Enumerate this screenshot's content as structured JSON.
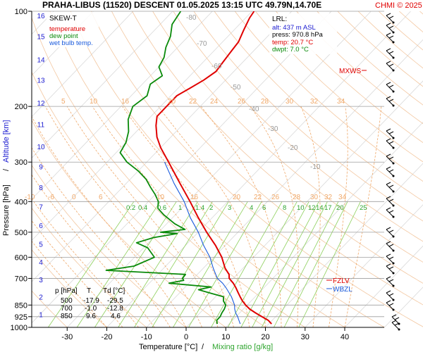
{
  "header": {
    "title": "PRAHA-LIBUS (11520)   DESCENT   01.05.2025 13:15 UTC  49.79N,14.70E",
    "copyright": "CHMI © 2025",
    "chart_kind": "SKEW-T"
  },
  "legend": {
    "temperature": "temperature",
    "dew_point": "dew point",
    "wet_bulb": "wet bulb temp."
  },
  "lrl": {
    "title": "LRL:",
    "alt": "alt: 437 m ASL",
    "press": "press: 970.8 hPa",
    "temp": "temp: 20.7 °C",
    "dwpt": "dwpt: 7.0 °C"
  },
  "labels": {
    "mxws": "MXWS",
    "fzlv": "FZLV",
    "wbzl": "WBZL"
  },
  "table": {
    "header": [
      "p [hPa]",
      "T",
      "Td [°C]"
    ],
    "rows": [
      [
        "500",
        "-17.9",
        "-29.5"
      ],
      [
        "700",
        "-1.0",
        "-12.8"
      ],
      [
        "850",
        "9.6",
        "4.6"
      ]
    ]
  },
  "colors": {
    "temperature": "#e00000",
    "dew_point": "#0a8a0a",
    "wet_bulb": "#1a5adc",
    "isotherm": "#d9d9d9",
    "dry_adiabat": "#f3c7a0",
    "moist_adiabat": "#f0a868",
    "mixing_ratio": "#8ccf5a",
    "isobar": "#9e9e9e"
  },
  "chart_data": {
    "type": "line",
    "title": "PRAHA-LIBUS (11520)   DESCENT   01.05.2025 13:15 UTC  49.79N,14.70E",
    "xlabel": "Temperature [°C]",
    "xlabel_extra": "Mixing ratio [g/kg]",
    "ylabel": "Pressure [hPa]",
    "ylabel_extra": "Altitude [km]",
    "xlim": [
      -35,
      45
    ],
    "ylim": [
      1000,
      100
    ],
    "y_scale": "log",
    "x_ticks": [
      -30,
      -20,
      -10,
      0,
      10,
      20,
      30,
      40
    ],
    "y_ticks": [
      100,
      200,
      300,
      400,
      500,
      600,
      700,
      850,
      925,
      1000
    ],
    "altitude_ticks": [
      {
        "km": 1,
        "p": 910
      },
      {
        "km": 2,
        "p": 800
      },
      {
        "km": 3,
        "p": 705
      },
      {
        "km": 4,
        "p": 620
      },
      {
        "km": 5,
        "p": 545
      },
      {
        "km": 6,
        "p": 475
      },
      {
        "km": 7,
        "p": 415
      },
      {
        "km": 8,
        "p": 360
      },
      {
        "km": 9,
        "p": 310
      },
      {
        "km": 10,
        "p": 268
      },
      {
        "km": 11,
        "p": 228
      },
      {
        "km": 12,
        "p": 195
      },
      {
        "km": 13,
        "p": 165
      },
      {
        "km": 14,
        "p": 142
      },
      {
        "km": 15,
        "p": 120
      },
      {
        "km": 16,
        "p": 103
      }
    ],
    "dry_adiabat_labels": [
      -80,
      -70,
      -60,
      -50,
      -40,
      -30,
      -20,
      -10
    ],
    "moist_adiabat_labels": [
      5,
      10,
      16,
      20,
      22,
      24,
      26,
      28,
      30,
      32,
      34
    ],
    "moist_adiabat_labels_low": [
      -10,
      -6,
      0,
      6,
      10,
      16,
      20,
      22,
      26,
      28,
      30,
      32,
      34
    ],
    "mixing_ratio_labels": [
      "0.2",
      "0.4",
      "0.6",
      "1",
      "1.4",
      "2",
      "3",
      "4",
      "6",
      "8",
      "10",
      "12",
      "14",
      "17",
      "20",
      "25"
    ],
    "series": [
      {
        "name": "temperature",
        "points": [
          {
            "p": 975,
            "t": 20.7
          },
          {
            "p": 950,
            "t": 19.0
          },
          {
            "p": 925,
            "t": 16.5
          },
          {
            "p": 900,
            "t": 14.0
          },
          {
            "p": 875,
            "t": 11.6
          },
          {
            "p": 850,
            "t": 9.6
          },
          {
            "p": 825,
            "t": 7.8
          },
          {
            "p": 800,
            "t": 6.2
          },
          {
            "p": 775,
            "t": 4.6
          },
          {
            "p": 750,
            "t": 3.0
          },
          {
            "p": 725,
            "t": 1.2
          },
          {
            "p": 700,
            "t": -1.0
          },
          {
            "p": 680,
            "t": -2.0
          },
          {
            "p": 650,
            "t": -4.5
          },
          {
            "p": 600,
            "t": -8.0
          },
          {
            "p": 550,
            "t": -12.5
          },
          {
            "p": 500,
            "t": -17.9
          },
          {
            "p": 450,
            "t": -23.5
          },
          {
            "p": 400,
            "t": -29.5
          },
          {
            "p": 350,
            "t": -36.5
          },
          {
            "p": 300,
            "t": -44.5
          },
          {
            "p": 270,
            "t": -50.0
          },
          {
            "p": 250,
            "t": -53.5
          },
          {
            "p": 230,
            "t": -56.5
          },
          {
            "p": 215,
            "t": -58.5
          },
          {
            "p": 200,
            "t": -58.5
          },
          {
            "p": 185,
            "t": -58.5
          },
          {
            "p": 175,
            "t": -57.0
          },
          {
            "p": 165,
            "t": -55.5
          },
          {
            "p": 155,
            "t": -54.5
          },
          {
            "p": 145,
            "t": -55.0
          },
          {
            "p": 135,
            "t": -55.5
          },
          {
            "p": 125,
            "t": -56.0
          },
          {
            "p": 115,
            "t": -57.5
          },
          {
            "p": 105,
            "t": -59.0
          },
          {
            "p": 100,
            "t": -59.5
          }
        ]
      },
      {
        "name": "dew point",
        "points": [
          {
            "p": 975,
            "t": 7.0
          },
          {
            "p": 950,
            "t": 6.0
          },
          {
            "p": 925,
            "t": 6.0
          },
          {
            "p": 900,
            "t": 5.5
          },
          {
            "p": 875,
            "t": 5.2
          },
          {
            "p": 850,
            "t": 4.6
          },
          {
            "p": 825,
            "t": 3.0
          },
          {
            "p": 800,
            "t": 2.0
          },
          {
            "p": 780,
            "t": -2.0
          },
          {
            "p": 760,
            "t": -6.0
          },
          {
            "p": 745,
            "t": -3.5
          },
          {
            "p": 725,
            "t": -15.0
          },
          {
            "p": 710,
            "t": -12.0
          },
          {
            "p": 700,
            "t": -12.8
          },
          {
            "p": 680,
            "t": -13.0
          },
          {
            "p": 660,
            "t": -34.0
          },
          {
            "p": 640,
            "t": -28.0
          },
          {
            "p": 600,
            "t": -25.0
          },
          {
            "p": 560,
            "t": -29.0
          },
          {
            "p": 540,
            "t": -33.0
          },
          {
            "p": 520,
            "t": -30.0
          },
          {
            "p": 505,
            "t": -25.0
          },
          {
            "p": 500,
            "t": -29.5
          },
          {
            "p": 490,
            "t": -24.0
          },
          {
            "p": 470,
            "t": -28.0
          },
          {
            "p": 440,
            "t": -33.0
          },
          {
            "p": 420,
            "t": -36.0
          },
          {
            "p": 400,
            "t": -37.5
          },
          {
            "p": 380,
            "t": -40.0
          },
          {
            "p": 360,
            "t": -43.0
          },
          {
            "p": 340,
            "t": -46.0
          },
          {
            "p": 320,
            "t": -50.0
          },
          {
            "p": 300,
            "t": -55.0
          },
          {
            "p": 280,
            "t": -59.0
          },
          {
            "p": 260,
            "t": -60.0
          },
          {
            "p": 240,
            "t": -62.0
          },
          {
            "p": 220,
            "t": -65.0
          },
          {
            "p": 200,
            "t": -67.0
          },
          {
            "p": 185,
            "t": -66.0
          },
          {
            "p": 170,
            "t": -68.0
          },
          {
            "p": 160,
            "t": -67.0
          },
          {
            "p": 150,
            "t": -70.0
          },
          {
            "p": 140,
            "t": -71.0
          },
          {
            "p": 130,
            "t": -73.0
          },
          {
            "p": 120,
            "t": -74.5
          },
          {
            "p": 110,
            "t": -77.0
          },
          {
            "p": 100,
            "t": -78.0
          }
        ]
      },
      {
        "name": "wet bulb temp.",
        "points": [
          {
            "p": 975,
            "t": 12.8
          },
          {
            "p": 950,
            "t": 11.6
          },
          {
            "p": 925,
            "t": 10.4
          },
          {
            "p": 900,
            "t": 9.0
          },
          {
            "p": 875,
            "t": 7.8
          },
          {
            "p": 850,
            "t": 6.8
          },
          {
            "p": 800,
            "t": 4.0
          },
          {
            "p": 750,
            "t": 0.5
          },
          {
            "p": 725,
            "t": -1.5
          },
          {
            "p": 700,
            "t": -4.0
          },
          {
            "p": 650,
            "t": -7.5
          },
          {
            "p": 600,
            "t": -11.0
          },
          {
            "p": 550,
            "t": -15.5
          },
          {
            "p": 500,
            "t": -20.0
          },
          {
            "p": 450,
            "t": -25.5
          },
          {
            "p": 400,
            "t": -31.0
          },
          {
            "p": 350,
            "t": -38.0
          },
          {
            "p": 300,
            "t": -45.5
          }
        ]
      }
    ]
  }
}
